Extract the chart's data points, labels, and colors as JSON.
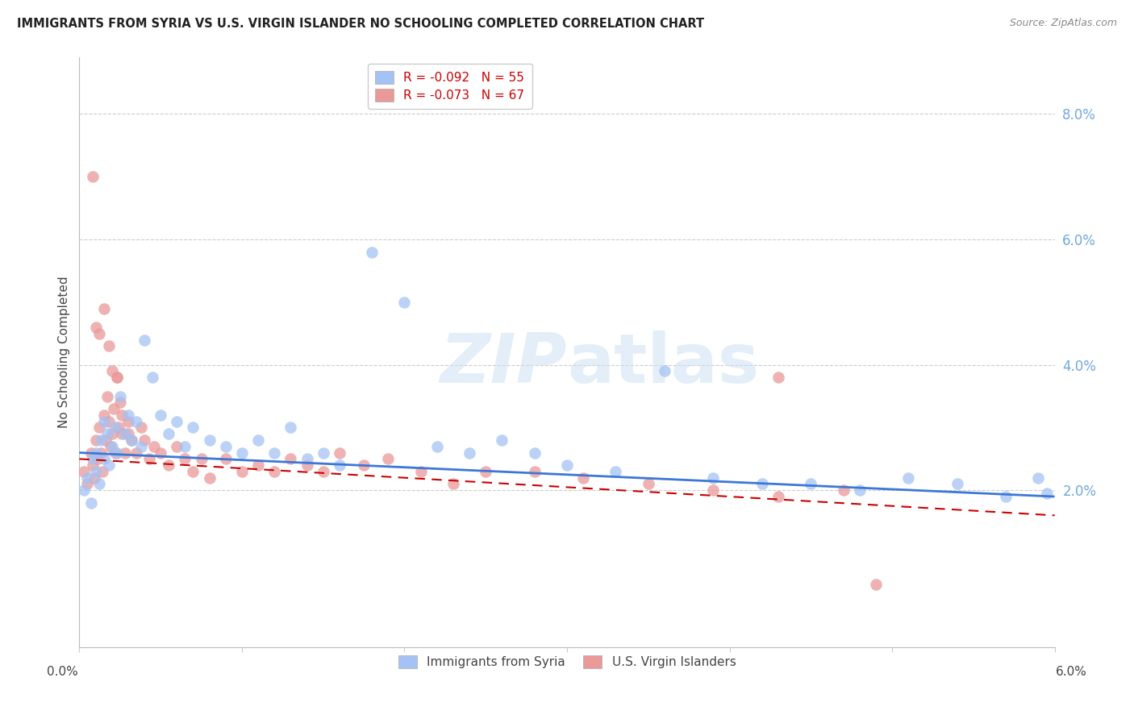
{
  "title": "IMMIGRANTS FROM SYRIA VS U.S. VIRGIN ISLANDER NO SCHOOLING COMPLETED CORRELATION CHART",
  "source": "Source: ZipAtlas.com",
  "ylabel": "No Schooling Completed",
  "watermark": "ZIPatlas",
  "legend_blue_r": "R = -0.092",
  "legend_blue_n": "N = 55",
  "legend_pink_r": "R = -0.073",
  "legend_pink_n": "N = 67",
  "blue_color": "#a4c2f4",
  "pink_color": "#ea9999",
  "blue_line_color": "#3c78d8",
  "pink_line_color": "#cc0000",
  "right_axis_color": "#6fa8dc",
  "ytick_labels": [
    "8.0%",
    "6.0%",
    "4.0%",
    "2.0%"
  ],
  "ytick_values": [
    0.08,
    0.06,
    0.04,
    0.02
  ],
  "xlim": [
    0.0,
    0.06
  ],
  "ylim": [
    -0.005,
    0.089
  ],
  "blue_line_start_y": 0.026,
  "blue_line_end_y": 0.019,
  "pink_line_start_y": 0.025,
  "pink_line_end_y": 0.016,
  "blue_scatter_x": [
    0.0003,
    0.0005,
    0.0007,
    0.0008,
    0.001,
    0.001,
    0.0012,
    0.0013,
    0.0015,
    0.0015,
    0.0017,
    0.0018,
    0.002,
    0.0022,
    0.0023,
    0.0025,
    0.0028,
    0.003,
    0.0032,
    0.0035,
    0.0038,
    0.004,
    0.0045,
    0.005,
    0.0055,
    0.006,
    0.0065,
    0.007,
    0.008,
    0.009,
    0.01,
    0.011,
    0.012,
    0.013,
    0.014,
    0.015,
    0.016,
    0.018,
    0.02,
    0.022,
    0.024,
    0.026,
    0.028,
    0.03,
    0.033,
    0.036,
    0.039,
    0.042,
    0.045,
    0.048,
    0.051,
    0.054,
    0.057,
    0.059,
    0.0595
  ],
  "blue_scatter_y": [
    0.02,
    0.022,
    0.018,
    0.025,
    0.023,
    0.026,
    0.021,
    0.028,
    0.031,
    0.025,
    0.029,
    0.024,
    0.027,
    0.03,
    0.026,
    0.035,
    0.029,
    0.032,
    0.028,
    0.031,
    0.027,
    0.044,
    0.038,
    0.032,
    0.029,
    0.031,
    0.027,
    0.03,
    0.028,
    0.027,
    0.026,
    0.028,
    0.026,
    0.03,
    0.025,
    0.026,
    0.024,
    0.058,
    0.05,
    0.027,
    0.026,
    0.028,
    0.026,
    0.024,
    0.023,
    0.039,
    0.022,
    0.021,
    0.021,
    0.02,
    0.022,
    0.021,
    0.019,
    0.022,
    0.0195
  ],
  "pink_scatter_x": [
    0.0003,
    0.0005,
    0.0007,
    0.0008,
    0.0009,
    0.001,
    0.0011,
    0.0012,
    0.0013,
    0.0014,
    0.0015,
    0.0016,
    0.0017,
    0.0018,
    0.0019,
    0.002,
    0.0021,
    0.0022,
    0.0023,
    0.0024,
    0.0025,
    0.0026,
    0.0028,
    0.003,
    0.0032,
    0.0035,
    0.0038,
    0.004,
    0.0043,
    0.0046,
    0.005,
    0.0055,
    0.006,
    0.0065,
    0.007,
    0.0075,
    0.008,
    0.009,
    0.01,
    0.011,
    0.012,
    0.013,
    0.014,
    0.015,
    0.016,
    0.0175,
    0.019,
    0.021,
    0.023,
    0.025,
    0.028,
    0.031,
    0.035,
    0.039,
    0.043,
    0.047,
    0.0008,
    0.001,
    0.0012,
    0.0015,
    0.0018,
    0.002,
    0.0023,
    0.0026,
    0.003,
    0.043,
    0.049
  ],
  "pink_scatter_y": [
    0.023,
    0.021,
    0.026,
    0.024,
    0.022,
    0.028,
    0.025,
    0.03,
    0.026,
    0.023,
    0.032,
    0.028,
    0.035,
    0.031,
    0.027,
    0.029,
    0.033,
    0.026,
    0.038,
    0.03,
    0.034,
    0.029,
    0.026,
    0.031,
    0.028,
    0.026,
    0.03,
    0.028,
    0.025,
    0.027,
    0.026,
    0.024,
    0.027,
    0.025,
    0.023,
    0.025,
    0.022,
    0.025,
    0.023,
    0.024,
    0.023,
    0.025,
    0.024,
    0.023,
    0.026,
    0.024,
    0.025,
    0.023,
    0.021,
    0.023,
    0.023,
    0.022,
    0.021,
    0.02,
    0.019,
    0.02,
    0.07,
    0.046,
    0.045,
    0.049,
    0.043,
    0.039,
    0.038,
    0.032,
    0.029,
    0.038,
    0.005
  ]
}
